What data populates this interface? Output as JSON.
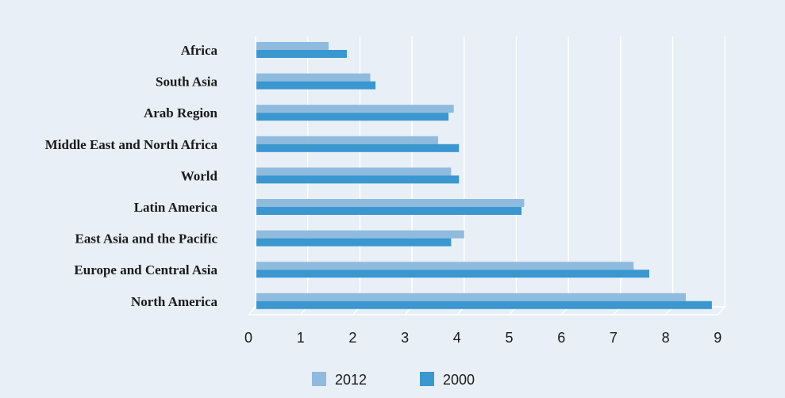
{
  "chart_data": {
    "type": "bar",
    "orientation": "horizontal",
    "title": "",
    "xlabel": "",
    "ylabel": "",
    "xlim": [
      0,
      9
    ],
    "x_ticks": [
      "0",
      "1",
      "2",
      "3",
      "4",
      "5",
      "6",
      "7",
      "8",
      "9"
    ],
    "grid": true,
    "legend_position": "bottom",
    "categories": [
      "Africa",
      "South Asia",
      "Arab Region",
      "Middle East and North Africa",
      "World",
      "Latin America",
      "East Asia and the Pacific",
      "Europe and Central Asia",
      "North America"
    ],
    "series": [
      {
        "name": "2012",
        "color": "#8fbbde",
        "values": [
          1.4,
          2.2,
          3.8,
          3.5,
          3.75,
          5.15,
          4.0,
          7.25,
          8.25
        ]
      },
      {
        "name": "2000",
        "color": "#3b97cf",
        "values": [
          1.75,
          2.3,
          3.7,
          3.9,
          3.9,
          5.1,
          3.75,
          7.55,
          8.75
        ]
      }
    ]
  }
}
